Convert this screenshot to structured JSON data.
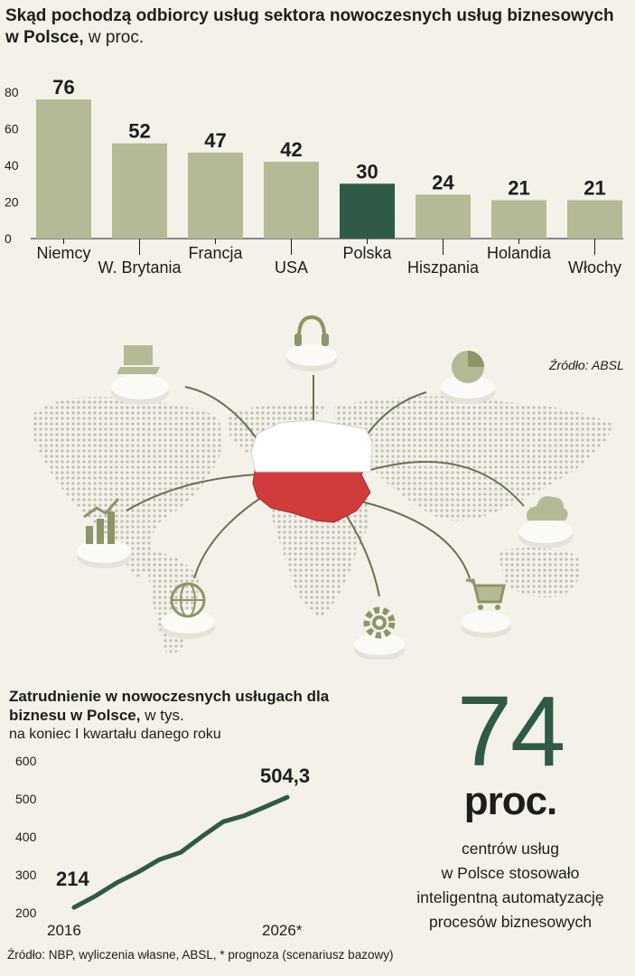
{
  "header": {
    "title_bold": "Skąd pochodzą odbiorcy usług sektora nowoczesnych usług biznesowych w Polsce,",
    "title_unit": "w proc."
  },
  "chart_data": [
    {
      "type": "bar",
      "title": "Skąd pochodzą odbiorcy usług sektora nowoczesnych usług biznesowych w Polsce, w proc.",
      "categories": [
        "Niemcy",
        "W. Brytania",
        "Francja",
        "USA",
        "Polska",
        "Hiszpania",
        "Holandia",
        "Włochy"
      ],
      "values": [
        76,
        52,
        47,
        42,
        30,
        24,
        21,
        21
      ],
      "value_labels": [
        "76",
        "52",
        "47",
        "42",
        "30",
        "24",
        "21",
        "21"
      ],
      "highlight": "Polska",
      "yticks": [
        "0",
        "20",
        "40",
        "60",
        "80"
      ],
      "ylim": [
        0,
        80
      ],
      "colors": {
        "default": "#b5b996",
        "highlight": "#2f5a45"
      }
    },
    {
      "type": "line",
      "title": "Zatrudnienie w nowoczesnych usługach dla biznesu w Polsce, w tys.",
      "subtitle": "na koniec I kwartału danego roku",
      "x": [
        2016,
        2017,
        2018,
        2019,
        2020,
        2021,
        2022,
        2023,
        2024,
        2025,
        2026
      ],
      "y": [
        214,
        244,
        279,
        307,
        340,
        359,
        401,
        440,
        456,
        480,
        504.3
      ],
      "xtick_labels": [
        "2016",
        "2026*"
      ],
      "yticks": [
        "200",
        "300",
        "400",
        "500",
        "600"
      ],
      "ylim": [
        200,
        600
      ],
      "point_labels": {
        "first": "214",
        "last": "504,3"
      },
      "color": "#2f5a45"
    }
  ],
  "map": {
    "source": "Źródło: ABSL",
    "icons": [
      "laptop-icon",
      "headset-icon",
      "pie-chart-icon",
      "growth-chart-icon",
      "cloud-icon",
      "globe-icon",
      "gear-icon",
      "cart-icon"
    ],
    "center_color": "#d23b3b"
  },
  "employment": {
    "title_bold": "Zatrudnienie w nowoczesnych usługach dla biznesu w Polsce,",
    "title_unit": "w tys.",
    "subtitle": "na koniec I kwartału danego roku"
  },
  "stat": {
    "number": "74",
    "unit": "proc.",
    "lines": [
      "centrów usług",
      "w Polsce stosowało",
      "inteligentną automatyzację",
      "procesów biznesowych"
    ]
  },
  "footer": {
    "source": "Źródło: NBP, wyliczenia własne, ABSL, * prognoza (scenariusz bazowy)"
  }
}
